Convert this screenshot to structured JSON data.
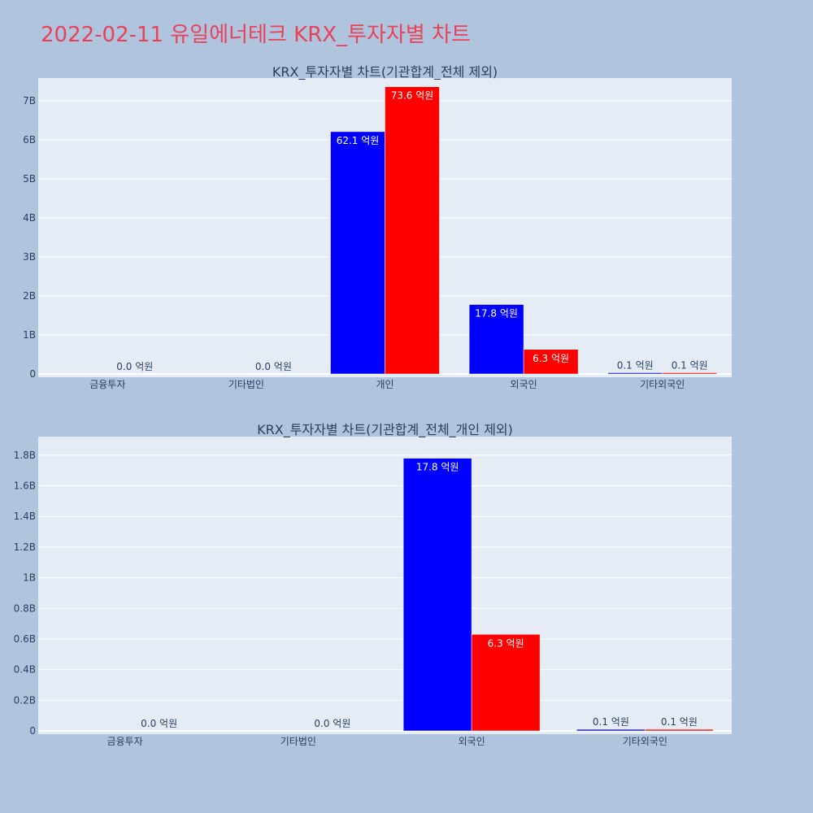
{
  "page_title": "2022-02-11 유일에너테크 KRX_투자자별 차트",
  "colors": {
    "title": "#e8425a",
    "series_a": "#0000ff",
    "series_b": "#ff0000",
    "plot_bg": "#e5ecf6",
    "page_bg": "#b0c4de"
  },
  "chart_data": [
    {
      "type": "bar",
      "title": "KRX_투자자별 차트(기관합계_전체 제외)",
      "categories": [
        "금융투자",
        "기타법인",
        "개인",
        "외국인",
        "기타외국인"
      ],
      "series": [
        {
          "values": [
            0,
            0,
            6210000000,
            1780000000,
            10000000
          ],
          "labels": [
            "",
            "",
            "62.1 억원",
            "17.8 억원",
            "0.1 억원"
          ]
        },
        {
          "values": [
            0,
            0,
            7360000000,
            630000000,
            10000000
          ],
          "labels": [
            "0.0 억원",
            "0.0 억원",
            "73.6 억원",
            "6.3 억원",
            "0.1 억원"
          ]
        }
      ],
      "ylim": [
        0,
        7500000000
      ],
      "yticks": [
        0,
        1000000000,
        2000000000,
        3000000000,
        4000000000,
        5000000000,
        6000000000,
        7000000000
      ],
      "ytick_labels": [
        "0",
        "1B",
        "2B",
        "3B",
        "4B",
        "5B",
        "6B",
        "7B"
      ],
      "grid": true,
      "xlabel": "",
      "ylabel": ""
    },
    {
      "type": "bar",
      "title": "KRX_투자자별 차트(기관합계_전체_개인 제외)",
      "categories": [
        "금융투자",
        "기타법인",
        "외국인",
        "기타외국인"
      ],
      "series": [
        {
          "values": [
            0,
            0,
            1780000000,
            10000000
          ],
          "labels": [
            "",
            "",
            "17.8 억원",
            "0.1 억원"
          ]
        },
        {
          "values": [
            0,
            0,
            630000000,
            10000000
          ],
          "labels": [
            "0.0 억원",
            "0.0 억원",
            "6.3 억원",
            "0.1 억원"
          ]
        }
      ],
      "ylim": [
        0,
        1900000000
      ],
      "yticks": [
        0,
        200000000,
        400000000,
        600000000,
        800000000,
        1000000000,
        1200000000,
        1400000000,
        1600000000,
        1800000000
      ],
      "ytick_labels": [
        "0",
        "0.2B",
        "0.4B",
        "0.6B",
        "0.8B",
        "1B",
        "1.2B",
        "1.4B",
        "1.6B",
        "1.8B"
      ],
      "grid": true,
      "xlabel": "",
      "ylabel": ""
    }
  ]
}
